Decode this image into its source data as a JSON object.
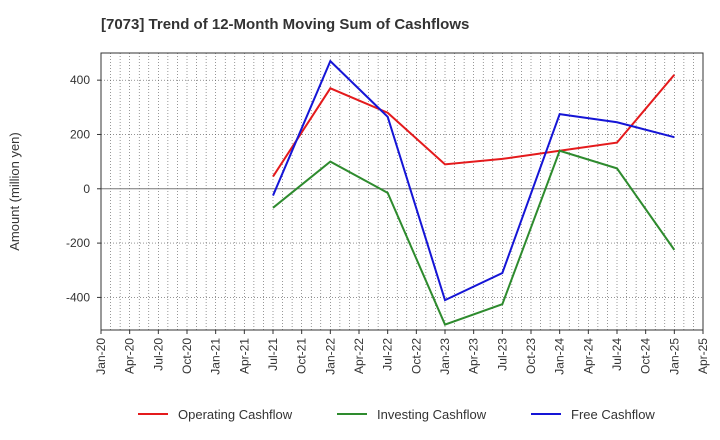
{
  "title": "[7073]  Trend of 12-Month Moving Sum of Cashflows",
  "chart_data": {
    "type": "line",
    "ylabel": "Amount (million yen)",
    "xlabel": "",
    "ylim": [
      -520,
      500
    ],
    "yticks": [
      -400,
      -200,
      0,
      200,
      400
    ],
    "x_ticks": [
      "Jan-20",
      "Apr-20",
      "Jul-20",
      "Oct-20",
      "Jan-21",
      "Apr-21",
      "Jul-21",
      "Oct-21",
      "Jan-22",
      "Apr-22",
      "Jul-22",
      "Oct-22",
      "Jan-23",
      "Apr-23",
      "Jul-23",
      "Oct-23",
      "Jan-24",
      "Apr-24",
      "Jul-24",
      "Oct-24",
      "Jan-25",
      "Apr-25"
    ],
    "grid": true,
    "legend_position": "bottom",
    "series": [
      {
        "name": "Operating Cashflow",
        "color": "#e41a1c",
        "points": [
          {
            "x": "Jul-21",
            "y": 45
          },
          {
            "x": "Jan-22",
            "y": 370
          },
          {
            "x": "Jul-22",
            "y": 280
          },
          {
            "x": "Jan-23",
            "y": 90
          },
          {
            "x": "Jul-23",
            "y": 110
          },
          {
            "x": "Jan-24",
            "y": 140
          },
          {
            "x": "Jul-24",
            "y": 170
          },
          {
            "x": "Jan-25",
            "y": 420
          }
        ]
      },
      {
        "name": "Investing Cashflow",
        "color": "#2e8b2e",
        "points": [
          {
            "x": "Jul-21",
            "y": -70
          },
          {
            "x": "Jan-22",
            "y": 100
          },
          {
            "x": "Jul-22",
            "y": -15
          },
          {
            "x": "Jan-23",
            "y": -500
          },
          {
            "x": "Jul-23",
            "y": -425
          },
          {
            "x": "Jan-24",
            "y": 140
          },
          {
            "x": "Jul-24",
            "y": 75
          },
          {
            "x": "Jan-25",
            "y": -225
          }
        ]
      },
      {
        "name": "Free Cashflow",
        "color": "#1515d6",
        "points": [
          {
            "x": "Jul-21",
            "y": -25
          },
          {
            "x": "Jan-22",
            "y": 470
          },
          {
            "x": "Jul-22",
            "y": 265
          },
          {
            "x": "Jan-23",
            "y": -410
          },
          {
            "x": "Jul-23",
            "y": -310
          },
          {
            "x": "Jan-24",
            "y": 275
          },
          {
            "x": "Jul-24",
            "y": 245
          },
          {
            "x": "Jan-25",
            "y": 190
          }
        ]
      }
    ]
  }
}
